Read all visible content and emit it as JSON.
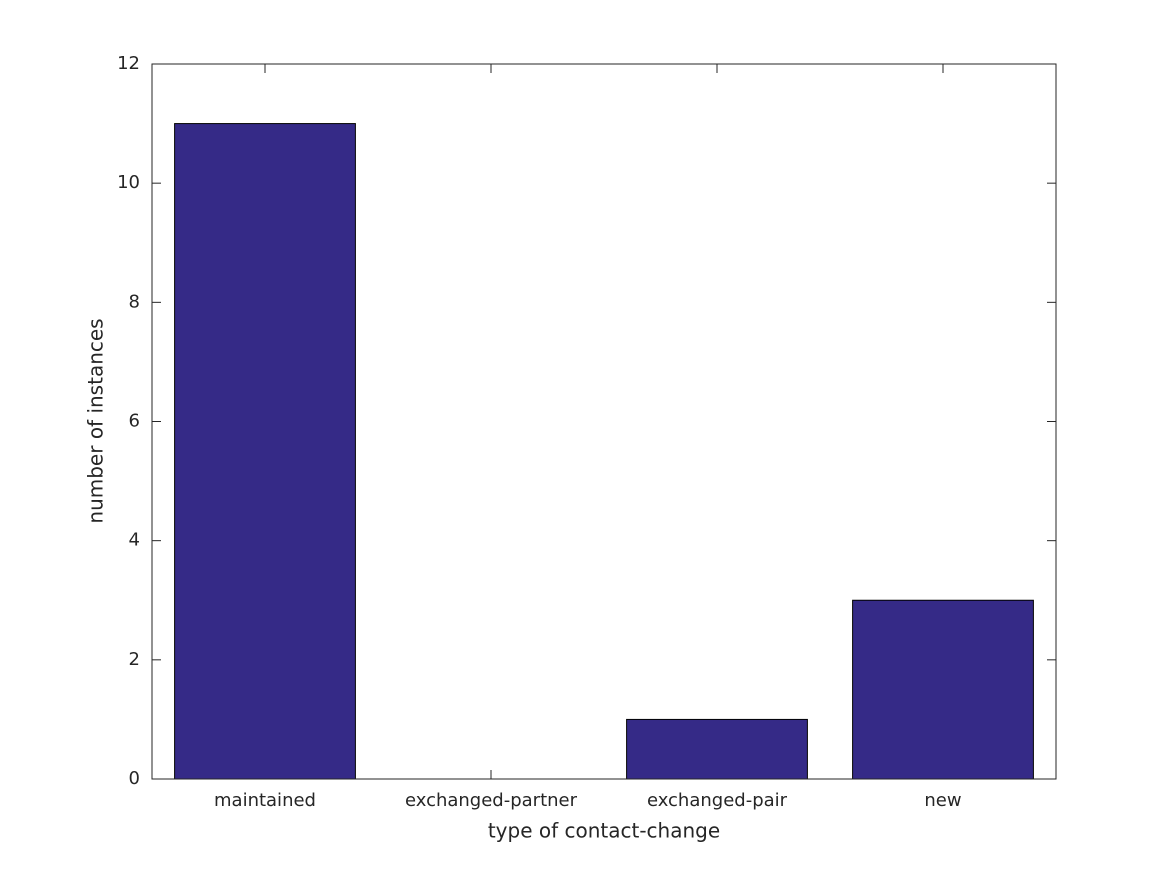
{
  "chart_data": {
    "type": "bar",
    "x_label": "type of contact-change",
    "y_label": "number of instances",
    "categories": [
      "maintained",
      "exchanged-partner",
      "exchanged-pair",
      "new"
    ],
    "values": [
      11,
      0,
      1,
      3
    ],
    "color": "#352a87",
    "ylim": [
      0,
      12
    ],
    "yticks": [
      0,
      2,
      4,
      6,
      8,
      10,
      12
    ],
    "grid": false
  }
}
